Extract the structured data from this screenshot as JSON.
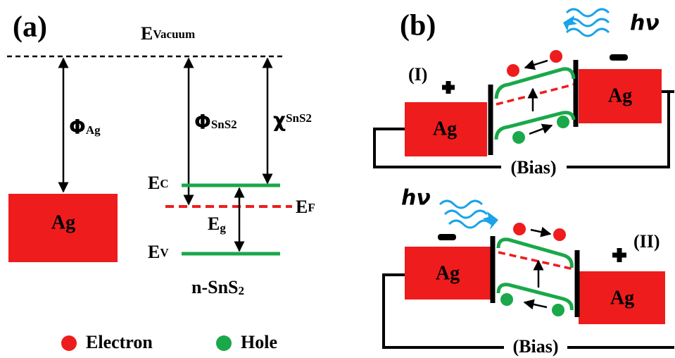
{
  "panel_a": {
    "label": "(a)",
    "vacuum": {
      "main": "E",
      "sub": "Vacuum"
    },
    "phi_ag": {
      "main": "Φ",
      "sub": "Ag"
    },
    "phi_sns2": {
      "main": "Φ",
      "sub": "SnS2"
    },
    "chi_sns2": {
      "main": "χ",
      "sub": "SnS2"
    },
    "ec": {
      "main": "E",
      "sub": "C"
    },
    "ef": {
      "main": "E",
      "sub": "F"
    },
    "eg": {
      "main": "E",
      "sub": "g"
    },
    "ev": {
      "main": "E",
      "sub": "V"
    },
    "metal": "Ag",
    "semiconductor": {
      "main": "n-SnS",
      "sub": "2"
    }
  },
  "legend": {
    "electron": "Electron",
    "hole": "Hole"
  },
  "panel_b": {
    "label": "(b)",
    "top": {
      "mode": "(I)",
      "photon": "hν",
      "left_metal": "Ag",
      "right_metal": "Ag",
      "bias": "(Bias)"
    },
    "bottom": {
      "mode": "(II)",
      "photon": "hν",
      "left_metal": "Ag",
      "right_metal": "Ag",
      "bias": "(Bias)"
    }
  }
}
